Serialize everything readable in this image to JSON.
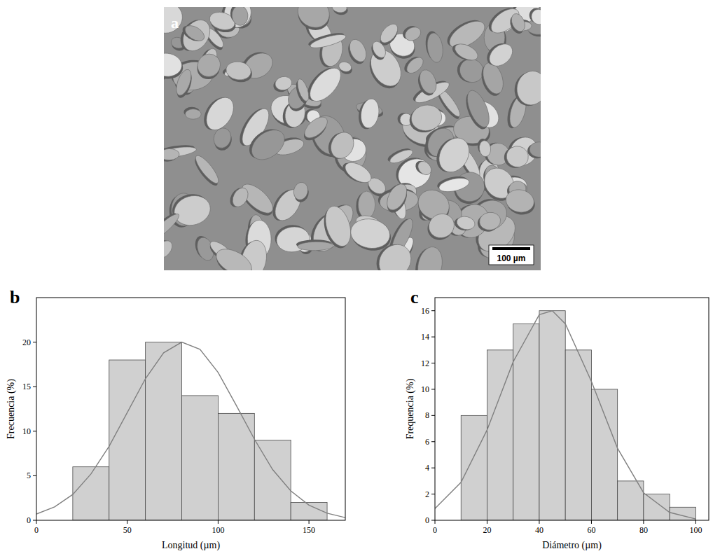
{
  "image": {
    "label": "a",
    "scale_bar": "100 µm"
  },
  "chart_data": [
    {
      "type": "histogram",
      "label": "b",
      "x_label": "Longitud (µm)",
      "y_label": "Frecuencia (%)",
      "bins": [
        20,
        40,
        60,
        80,
        100,
        120,
        140,
        160
      ],
      "counts": [
        6,
        18,
        20,
        14,
        12,
        9,
        2
      ],
      "color": "#d0d0d0",
      "xlim": [
        0,
        170
      ],
      "xticks": [
        0,
        50,
        100,
        150
      ],
      "ylim": [
        0,
        25
      ],
      "yticks": [
        0,
        5,
        10,
        15,
        20
      ],
      "grid": false,
      "series": [
        {
          "type": "line",
          "color": "#808080",
          "x": [
            0,
            10,
            20,
            30,
            40,
            50,
            60,
            70,
            80,
            90,
            100,
            110,
            120,
            130,
            140,
            150,
            160,
            170
          ],
          "values": [
            0.7,
            1.5,
            2.9,
            5.2,
            8.3,
            12.1,
            15.9,
            18.8,
            20.0,
            19.2,
            16.6,
            12.9,
            9.1,
            5.7,
            3.3,
            1.7,
            0.8,
            0.3
          ]
        }
      ]
    },
    {
      "type": "histogram",
      "label": "c",
      "x_label": "Diámetro (µm)",
      "y_label": "Frequencia (%)",
      "bins": [
        10,
        20,
        30,
        40,
        50,
        60,
        70,
        80,
        90,
        100
      ],
      "counts": [
        8,
        13,
        15,
        16,
        13,
        10,
        3,
        2,
        1
      ],
      "color": "#d0d0d0",
      "xlim": [
        0,
        105
      ],
      "xticks": [
        0,
        20,
        40,
        60,
        80,
        100
      ],
      "ylim": [
        0,
        17
      ],
      "yticks": [
        0,
        2,
        4,
        6,
        8,
        10,
        12,
        14,
        16
      ],
      "grid": false,
      "series": [
        {
          "type": "line",
          "color": "#808080",
          "x": [
            0,
            10,
            20,
            30,
            40,
            45,
            50,
            60,
            70,
            80,
            90,
            100
          ],
          "values": [
            0.9,
            2.9,
            6.9,
            12.1,
            15.7,
            16.0,
            15.0,
            10.6,
            5.5,
            2.1,
            0.6,
            0.1
          ]
        }
      ]
    }
  ]
}
